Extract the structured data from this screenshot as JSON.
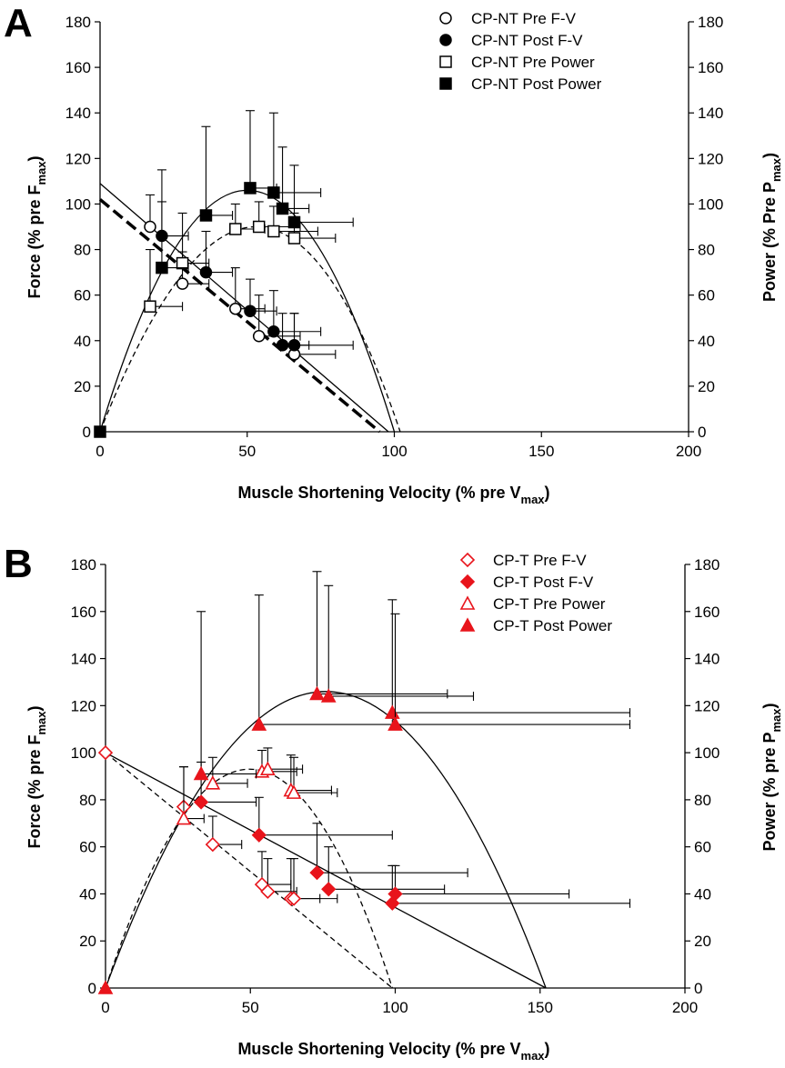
{
  "chart_data": [
    {
      "panel": "A",
      "type": "scatter",
      "xlabel": "Muscle Shortening Velocity (% pre V",
      "xlabel_sub": "max",
      "xlabel_end": ")",
      "ylabel_left": "Force (% pre F",
      "ylabel_left_sub": "max",
      "ylabel_left_end": ")",
      "ylabel_right": "Power (% Pre P",
      "ylabel_right_sub": "max",
      "ylabel_right_end": ")",
      "xlim": [
        0,
        200
      ],
      "ylim": [
        0,
        180
      ],
      "xticks": [
        "0",
        "50",
        "100",
        "150",
        "200"
      ],
      "yticks": [
        "0",
        "20",
        "40",
        "60",
        "80",
        "100",
        "120",
        "140",
        "160",
        "180"
      ],
      "legend_position": "top-right",
      "series": [
        {
          "name": "CP-NT Pre F-V",
          "marker": "circle-open",
          "color": "#000000",
          "points": [
            {
              "x": 17,
              "y": 90,
              "xerr": 0,
              "yerr": 14
            },
            {
              "x": 28,
              "y": 65,
              "xerr": 9,
              "yerr": 14
            },
            {
              "x": 46,
              "y": 54,
              "xerr": 10,
              "yerr": 18
            },
            {
              "x": 54,
              "y": 42,
              "xerr": 14,
              "yerr": 18
            },
            {
              "x": 66,
              "y": 34,
              "xerr": 14,
              "yerr": 18
            }
          ]
        },
        {
          "name": "CP-NT Post F-V",
          "marker": "circle-filled",
          "color": "#000000",
          "points": [
            {
              "x": 21,
              "y": 86,
              "xerr": 9,
              "yerr": 29
            },
            {
              "x": 36,
              "y": 70,
              "xerr": 9,
              "yerr": 18
            },
            {
              "x": 51,
              "y": 53,
              "xerr": 9,
              "yerr": 14
            },
            {
              "x": 59,
              "y": 44,
              "xerr": 16,
              "yerr": 18
            },
            {
              "x": 62,
              "y": 38,
              "xerr": 9,
              "yerr": 14
            },
            {
              "x": 66,
              "y": 38,
              "xerr": 20,
              "yerr": 14
            }
          ]
        },
        {
          "name": "CP-NT Pre Power",
          "marker": "square-open",
          "color": "#000000",
          "points": [
            {
              "x": 17,
              "y": 55,
              "xerr": 11,
              "yerr": 25
            },
            {
              "x": 28,
              "y": 74,
              "xerr": 9,
              "yerr": 22
            },
            {
              "x": 46,
              "y": 89,
              "xerr": 10,
              "yerr": 11
            },
            {
              "x": 54,
              "y": 90,
              "xerr": 14,
              "yerr": 11
            },
            {
              "x": 59,
              "y": 88,
              "xerr": 15,
              "yerr": 11
            },
            {
              "x": 66,
              "y": 85,
              "xerr": 14,
              "yerr": 11
            }
          ]
        },
        {
          "name": "CP-NT Post Power",
          "marker": "square-filled",
          "color": "#000000",
          "points": [
            {
              "x": 0,
              "y": 0,
              "xerr": 0,
              "yerr": 0
            },
            {
              "x": 21,
              "y": 72,
              "xerr": 9,
              "yerr": 29
            },
            {
              "x": 36,
              "y": 95,
              "xerr": 9,
              "yerr": 39
            },
            {
              "x": 51,
              "y": 107,
              "xerr": 9,
              "yerr": 34
            },
            {
              "x": 59,
              "y": 105,
              "xerr": 16,
              "yerr": 35
            },
            {
              "x": 62,
              "y": 98,
              "xerr": 9,
              "yerr": 27
            },
            {
              "x": 66,
              "y": 92,
              "xerr": 20,
              "yerr": 25
            }
          ]
        }
      ],
      "fits": [
        {
          "name": "Post F-V fit",
          "style": "solid",
          "kind": "linear",
          "from": [
            0,
            109
          ],
          "to": [
            98,
            0
          ]
        },
        {
          "name": "Pre F-V fit",
          "style": "dashed-bold",
          "kind": "linear",
          "from": [
            0,
            102
          ],
          "to": [
            95,
            0
          ]
        },
        {
          "name": "Post Power fit",
          "style": "solid",
          "kind": "parabola",
          "x_end": 100,
          "peak_x": 50,
          "peak_y": 106
        },
        {
          "name": "Pre Power fit",
          "style": "dashed",
          "kind": "parabola",
          "x_end": 102,
          "peak_x": 55,
          "peak_y": 90
        }
      ]
    },
    {
      "panel": "B",
      "type": "scatter",
      "xlabel": "Muscle Shortening Velocity (% pre V",
      "xlabel_sub": "max",
      "xlabel_end": ")",
      "ylabel_left": "Force (% pre F",
      "ylabel_left_sub": "max",
      "ylabel_left_end": ")",
      "ylabel_right": "Power (% pre P",
      "ylabel_right_sub": "max",
      "ylabel_right_end": ")",
      "xlim": [
        0,
        200
      ],
      "ylim": [
        0,
        180
      ],
      "xticks": [
        "0",
        "50",
        "100",
        "150",
        "200"
      ],
      "yticks": [
        "0",
        "20",
        "40",
        "60",
        "80",
        "100",
        "120",
        "140",
        "160",
        "180"
      ],
      "legend_position": "top-right",
      "series": [
        {
          "name": "CP-T Pre F-V",
          "marker": "diamond-open",
          "color": "#e8141b",
          "points": [
            {
              "x": 0,
              "y": 100,
              "xerr": 0,
              "yerr": 0
            },
            {
              "x": 27,
              "y": 77,
              "xerr": 0,
              "yerr": 17
            },
            {
              "x": 37,
              "y": 61,
              "xerr": 10,
              "yerr": 12
            },
            {
              "x": 54,
              "y": 44,
              "xerr": 10,
              "yerr": 14
            },
            {
              "x": 56,
              "y": 41,
              "xerr": 10,
              "yerr": 14
            },
            {
              "x": 64,
              "y": 38,
              "xerr": 10,
              "yerr": 17
            },
            {
              "x": 65,
              "y": 38,
              "xerr": 15,
              "yerr": 17
            }
          ]
        },
        {
          "name": "CP-T Post F-V",
          "marker": "diamond-filled",
          "color": "#e8141b",
          "points": [
            {
              "x": 33,
              "y": 79,
              "xerr": 19,
              "yerr": 17
            },
            {
              "x": 53,
              "y": 65,
              "xerr": 46,
              "yerr": 16
            },
            {
              "x": 73,
              "y": 49,
              "xerr": 52,
              "yerr": 21
            },
            {
              "x": 77,
              "y": 42,
              "xerr": 40,
              "yerr": 18
            },
            {
              "x": 99,
              "y": 36,
              "xerr": 82,
              "yerr": 16
            },
            {
              "x": 100,
              "y": 40,
              "xerr": 60,
              "yerr": 12
            }
          ]
        },
        {
          "name": "CP-T Pre Power",
          "marker": "triangle-open",
          "color": "#e8141b",
          "points": [
            {
              "x": 27,
              "y": 72,
              "xerr": 7,
              "yerr": 22
            },
            {
              "x": 37,
              "y": 87,
              "xerr": 12,
              "yerr": 11
            },
            {
              "x": 54,
              "y": 92,
              "xerr": 12,
              "yerr": 9
            },
            {
              "x": 56,
              "y": 93,
              "xerr": 12,
              "yerr": 9
            },
            {
              "x": 64,
              "y": 84,
              "xerr": 14,
              "yerr": 15
            },
            {
              "x": 65,
              "y": 83,
              "xerr": 15,
              "yerr": 15
            }
          ]
        },
        {
          "name": "CP-T Post Power",
          "marker": "triangle-filled",
          "color": "#e8141b",
          "points": [
            {
              "x": 0,
              "y": 0,
              "xerr": 0,
              "yerr": 0
            },
            {
              "x": 33,
              "y": 91,
              "xerr": 19,
              "yerr": 69
            },
            {
              "x": 53,
              "y": 112,
              "xerr": 46,
              "yerr": 55
            },
            {
              "x": 73,
              "y": 125,
              "xerr": 45,
              "yerr": 52
            },
            {
              "x": 77,
              "y": 124,
              "xerr": 50,
              "yerr": 47
            },
            {
              "x": 99,
              "y": 117,
              "xerr": 82,
              "yerr": 48
            },
            {
              "x": 100,
              "y": 112,
              "xerr": 81,
              "yerr": 47
            }
          ]
        }
      ],
      "fits": [
        {
          "name": "Post F-V fit",
          "style": "solid",
          "kind": "linear",
          "from": [
            0,
            100
          ],
          "to": [
            152,
            0
          ]
        },
        {
          "name": "Pre F-V fit",
          "style": "dashed",
          "kind": "linear",
          "from": [
            0,
            100
          ],
          "to": [
            99,
            0
          ]
        },
        {
          "name": "Post Power fit",
          "style": "solid",
          "kind": "parabola",
          "x_end": 152,
          "peak_x": 76,
          "peak_y": 126
        },
        {
          "name": "Pre Power fit",
          "style": "dashed",
          "kind": "parabola",
          "x_end": 99,
          "peak_x": 50,
          "peak_y": 93
        }
      ]
    }
  ]
}
